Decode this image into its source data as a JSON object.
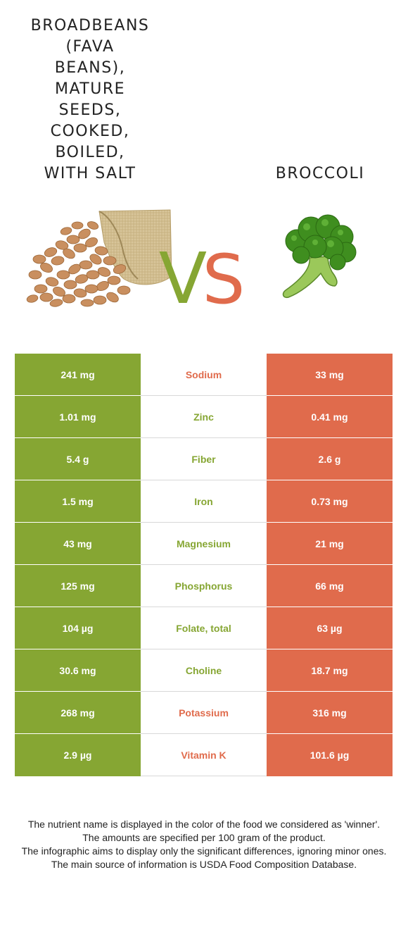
{
  "left_food": {
    "title_lines": [
      "BROADBEANS",
      "(FAVA",
      "BEANS),",
      "MATURE",
      "SEEDS,",
      "COOKED,",
      "BOILED,",
      "WITH SALT"
    ],
    "color": "#86a633"
  },
  "right_food": {
    "title": "BROCCOLI",
    "color": "#e06b4c"
  },
  "vs": {
    "v": "V",
    "s": "S"
  },
  "rows": [
    {
      "left": "241 mg",
      "nutrient": "Sodium",
      "right": "33 mg",
      "winner": "right"
    },
    {
      "left": "1.01 mg",
      "nutrient": "Zinc",
      "right": "0.41 mg",
      "winner": "left"
    },
    {
      "left": "5.4 g",
      "nutrient": "Fiber",
      "right": "2.6 g",
      "winner": "left"
    },
    {
      "left": "1.5 mg",
      "nutrient": "Iron",
      "right": "0.73 mg",
      "winner": "left"
    },
    {
      "left": "43 mg",
      "nutrient": "Magnesium",
      "right": "21 mg",
      "winner": "left"
    },
    {
      "left": "125 mg",
      "nutrient": "Phosphorus",
      "right": "66 mg",
      "winner": "left"
    },
    {
      "left": "104 µg",
      "nutrient": "Folate, total",
      "right": "63 µg",
      "winner": "left"
    },
    {
      "left": "30.6 mg",
      "nutrient": "Choline",
      "right": "18.7 mg",
      "winner": "left"
    },
    {
      "left": "268 mg",
      "nutrient": "Potassium",
      "right": "316 mg",
      "winner": "right"
    },
    {
      "left": "2.9 µg",
      "nutrient": "Vitamin K",
      "right": "101.6 µg",
      "winner": "right"
    }
  ],
  "footer": [
    "The nutrient name is displayed in the color of the food we considered as 'winner'.",
    "The amounts are specified per 100 gram of the product.",
    "The infographic aims to display only the significant differences, ignoring minor ones.",
    "The main source of information is USDA Food Composition Database."
  ]
}
